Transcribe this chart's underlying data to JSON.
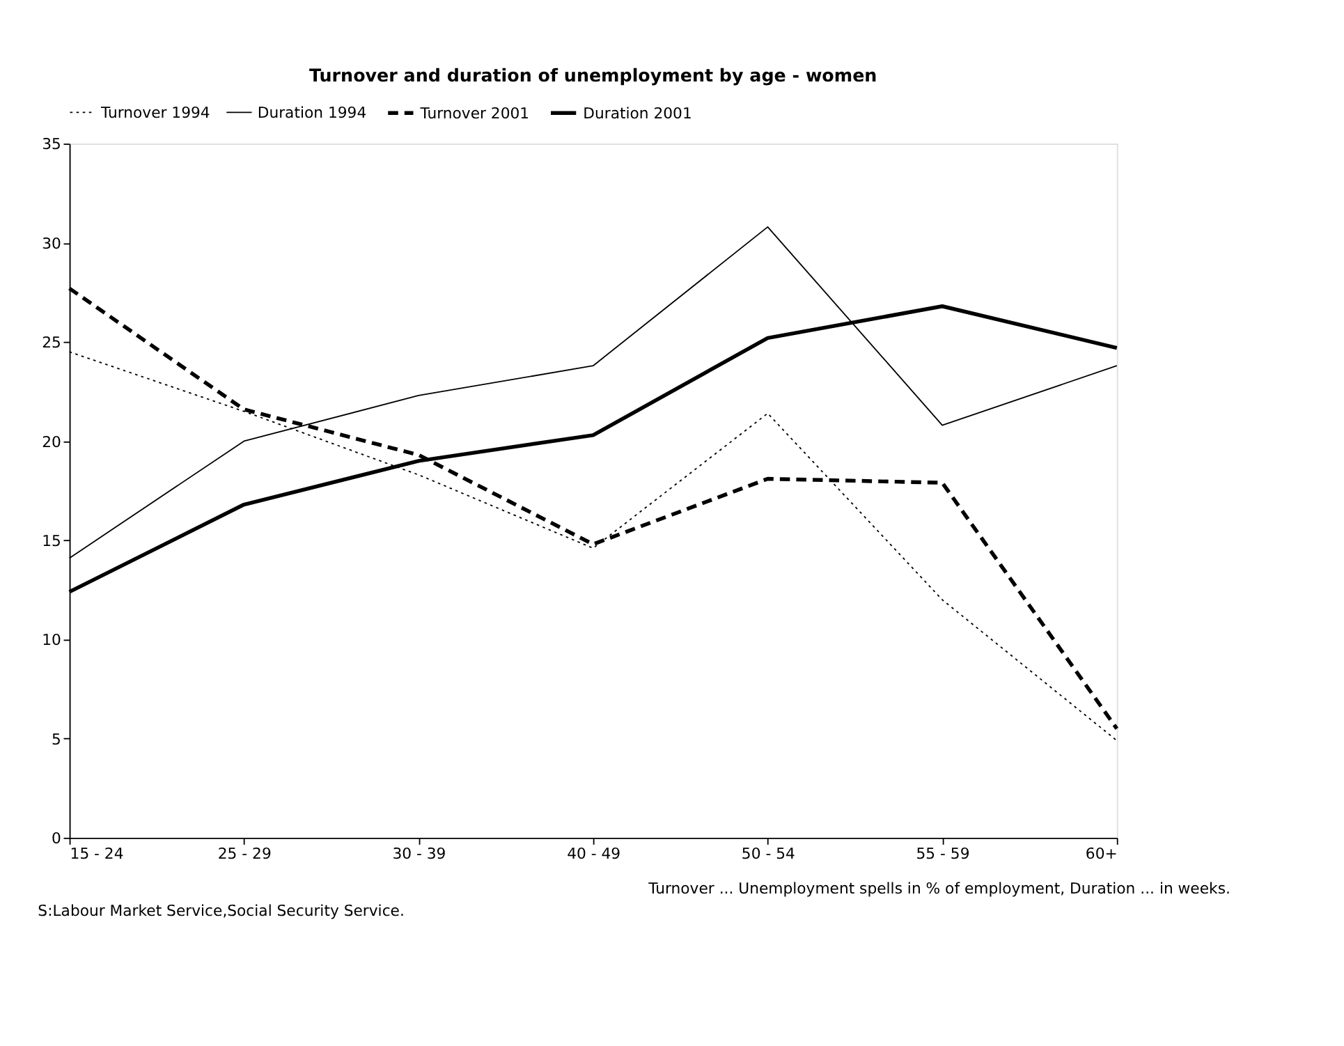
{
  "chart_data": {
    "type": "line",
    "title": "Turnover and duration of unemployment by age - women",
    "categories": [
      "15 - 24",
      "25 - 29",
      "30 - 39",
      "40 - 49",
      "50 - 54",
      "55 - 59",
      "60+"
    ],
    "series": [
      {
        "name": "Turnover 1994",
        "color": "#000000",
        "line_style": "dotted",
        "values": [
          24.5,
          21.5,
          18.3,
          14.6,
          21.4,
          12.0,
          4.9
        ]
      },
      {
        "name": "Duration 1994",
        "color": "#000000",
        "line_style": "solid",
        "values": [
          14.1,
          20.0,
          22.3,
          23.8,
          30.8,
          20.8,
          23.8
        ]
      },
      {
        "name": "Turnover 2001",
        "color": "#000000",
        "line_style": "dashed",
        "values": [
          27.7,
          21.6,
          19.3,
          14.8,
          18.1,
          17.9,
          5.5
        ]
      },
      {
        "name": "Duration 2001",
        "color": "#000000",
        "line_style": "solid",
        "values": [
          12.4,
          16.8,
          19.0,
          20.3,
          25.2,
          26.8,
          24.7
        ]
      }
    ],
    "ylim": [
      0,
      35
    ],
    "yticks": [
      0,
      5,
      10,
      15,
      20,
      25,
      30,
      35
    ],
    "grid": false,
    "legend": "top",
    "marker": "none",
    "annotations": [
      "Turnover ... Unemployment spells in %  of employment, Duration ... in weeks.",
      "S:Labour Market Service,Social Security Service."
    ]
  }
}
